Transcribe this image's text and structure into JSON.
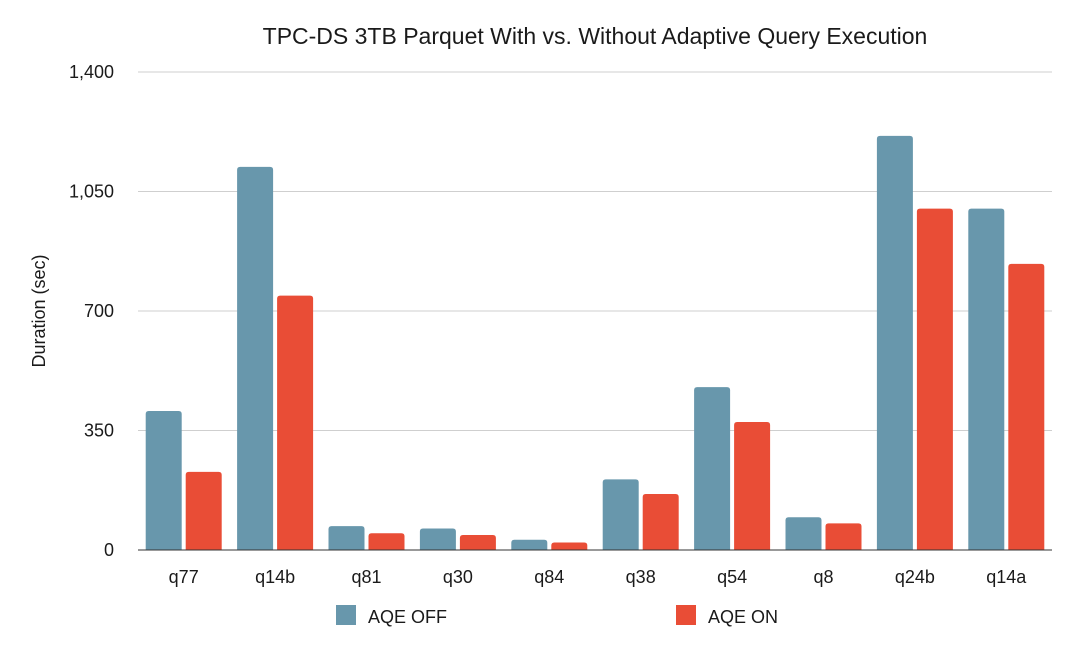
{
  "chart_data": {
    "type": "bar",
    "title": "TPC-DS 3TB Parquet With vs. Without Adaptive Query Execution",
    "xlabel": "",
    "ylabel": "Duration (sec)",
    "ylim": [
      0,
      1400
    ],
    "yticks": [
      0,
      350,
      700,
      1050,
      1400
    ],
    "ytick_labels": [
      "0",
      "350",
      "700",
      "1,050",
      "1,400"
    ],
    "grid": true,
    "legend_position": "bottom",
    "categories": [
      "q77",
      "q14b",
      "q81",
      "q30",
      "q84",
      "q38",
      "q54",
      "q8",
      "q24b",
      "q14a"
    ],
    "series": [
      {
        "name": "AQE OFF",
        "color": "#6897ac",
        "values": [
          407,
          1122,
          70,
          63,
          30,
          207,
          477,
          96,
          1213,
          1000
        ]
      },
      {
        "name": "AQE ON",
        "color": "#e94d36",
        "values": [
          229,
          745,
          49,
          44,
          22,
          164,
          375,
          78,
          1000,
          838
        ]
      }
    ]
  }
}
